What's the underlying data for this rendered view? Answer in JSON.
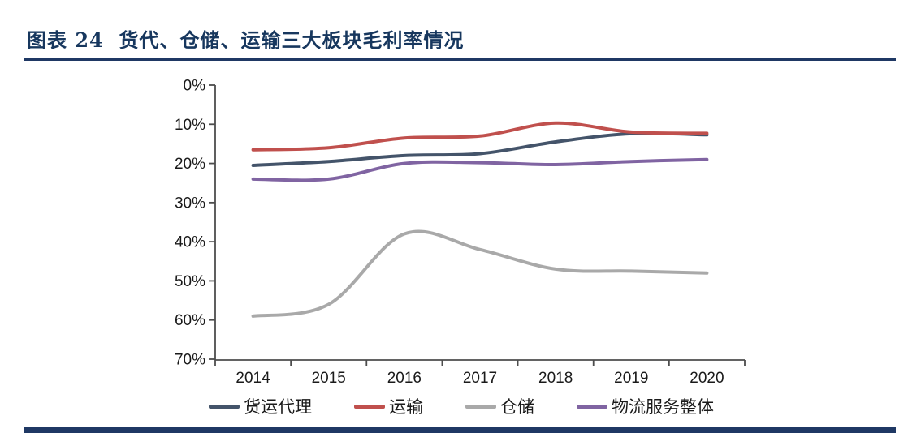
{
  "page": {
    "title": "图表 24  货代、仓储、运输三大板块毛利率情况",
    "title_color": "#17375E",
    "rule_color": "#1F3864",
    "axis_color": "#4d4d4d",
    "label_color": "#1a1a1a"
  },
  "chart_data": {
    "type": "line",
    "title": "货代、仓储、运输三大板块毛利率情况",
    "categories": [
      "2014",
      "2015",
      "2016",
      "2017",
      "2018",
      "2019",
      "2020"
    ],
    "series": [
      {
        "name": "货运代理",
        "slug": "freight-agency",
        "color": "#44546A",
        "values": [
          20.5,
          19.5,
          18.0,
          17.5,
          14.5,
          12.4,
          12.7
        ]
      },
      {
        "name": "运输",
        "slug": "transportation",
        "color": "#C0504D",
        "values": [
          16.5,
          16.0,
          13.5,
          13.0,
          9.7,
          12.0,
          12.3
        ]
      },
      {
        "name": "仓储",
        "slug": "warehousing",
        "color": "#A9A9A9",
        "values": [
          59.0,
          56.0,
          38.0,
          42.0,
          47.0,
          47.5,
          48.0
        ]
      },
      {
        "name": "物流服务整体",
        "slug": "logistics-overall",
        "color": "#8064A2",
        "values": [
          24.0,
          24.0,
          20.0,
          19.8,
          20.3,
          19.5,
          19.0
        ]
      }
    ],
    "ylim": [
      0,
      70
    ],
    "ytick_step": 10,
    "ytick_labels": [
      "0%",
      "10%",
      "20%",
      "30%",
      "40%",
      "50%",
      "60%",
      "70%"
    ],
    "xlabel": "",
    "ylabel": "",
    "grid": false,
    "legend_position": "bottom",
    "line_style": "smooth"
  }
}
